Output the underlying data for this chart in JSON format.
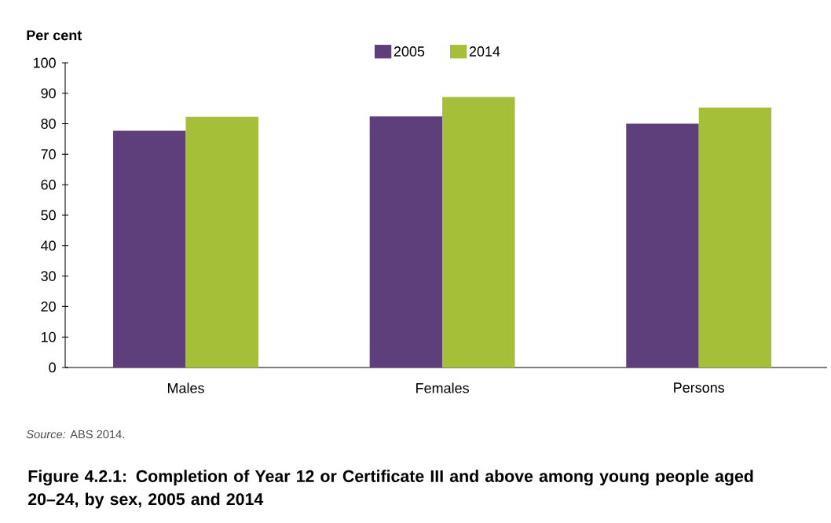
{
  "chart_data": {
    "type": "bar",
    "title": "Figure 4.2.1: Completion of Year 12 or Certificate III and above among young people aged 20–24, by sex, 2005 and 2014",
    "ylabel": "Per cent",
    "annotations": [
      "*Source:* ABS 2014."
    ],
    "categories": [
      "Males",
      "Females",
      "Persons"
    ],
    "series": [
      {
        "name": "2005",
        "color": "#5f3f7b",
        "values": [
          77.7,
          82.4,
          80.0
        ]
      },
      {
        "name": "2014",
        "color": "#a5bf38",
        "values": [
          82.3,
          88.8,
          85.3
        ]
      }
    ],
    "ylim": [
      0,
      100
    ],
    "yticks": [
      0,
      10,
      20,
      30,
      40,
      50,
      60,
      70,
      80,
      90,
      100
    ],
    "legend": "top"
  }
}
